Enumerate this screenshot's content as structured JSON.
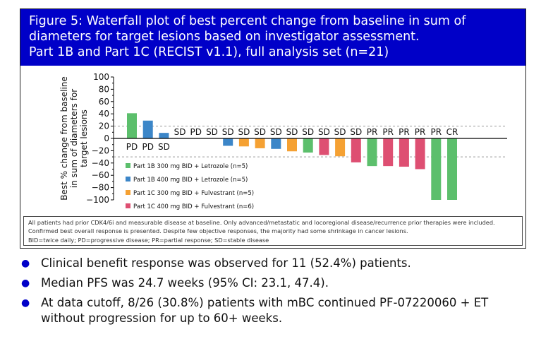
{
  "title": [
    "Figure 5: Waterfall plot of best percent change from baseline in sum of",
    "diameters for target lesions based on investigator assessment.",
    "Part 1B and Part 1C (RECIST v1.1), full analysis set (n=21)"
  ],
  "chart_data": {
    "type": "bar",
    "ylabel": [
      "Best % change from baseline",
      "in sum of diameters for",
      "target lesions"
    ],
    "ylim": [
      -100,
      100
    ],
    "yticks": [
      "100",
      "80",
      "60",
      "40",
      "20",
      "0",
      "−20",
      "−40",
      "−60",
      "−80",
      "−100"
    ],
    "reference_lines": [
      20,
      -30
    ],
    "responses": [
      "PD",
      "PD",
      "SD",
      "SD",
      "PD",
      "SD",
      "SD",
      "SD",
      "SD",
      "SD",
      "SD",
      "SD",
      "SD",
      "SD",
      "SD",
      "PR",
      "PR",
      "PR",
      "PR",
      "PR",
      "CR"
    ],
    "values": [
      41,
      29,
      9,
      0,
      0,
      0,
      -12,
      -13,
      -16,
      -17,
      -21,
      -23,
      -27,
      -29,
      -39,
      -45,
      -45,
      -46,
      -50,
      -100,
      -100
    ],
    "groups": [
      0,
      1,
      1,
      1,
      2,
      3,
      1,
      2,
      2,
      1,
      2,
      0,
      3,
      2,
      3,
      0,
      3,
      3,
      3,
      0,
      0
    ],
    "legend": [
      {
        "label": "Part 1B 300 mg BID + Letrozole (n=5)",
        "color": "#5cbf6c"
      },
      {
        "label": "Part 1B 400 mg BID + Letrozole (n=5)",
        "color": "#3c86c8"
      },
      {
        "label": "Part 1C 300 mg BID + Fulvestrant (n=5)",
        "color": "#f5a133"
      },
      {
        "label": "Part 1C 400 mg BID + Fulvestrant (n=6)",
        "color": "#de4f72"
      }
    ],
    "legend_position": "bottom-left"
  },
  "footnote": [
    "All patients had prior CDK4/6i and measurable disease at baseline. Only advanced/metastatic and locoregional disease/recurrence prior therapies were included. Confirmed best overall response is presented. Despite few objective responses, the majority had some shrinkage in cancer lesions.",
    "BID=twice daily; PD=progressive disease; PR=partial response; SD=stable disease"
  ],
  "bullets": [
    "Clinical benefit response was observed for 11 (52.4%) patients.",
    "Median PFS was 24.7 weeks (95% CI: 23.1, 47.4).",
    "At data cutoff, 8/26 (30.8%) patients with mBC continued PF-07220060 + ET without progression for up to 60+ weeks."
  ]
}
